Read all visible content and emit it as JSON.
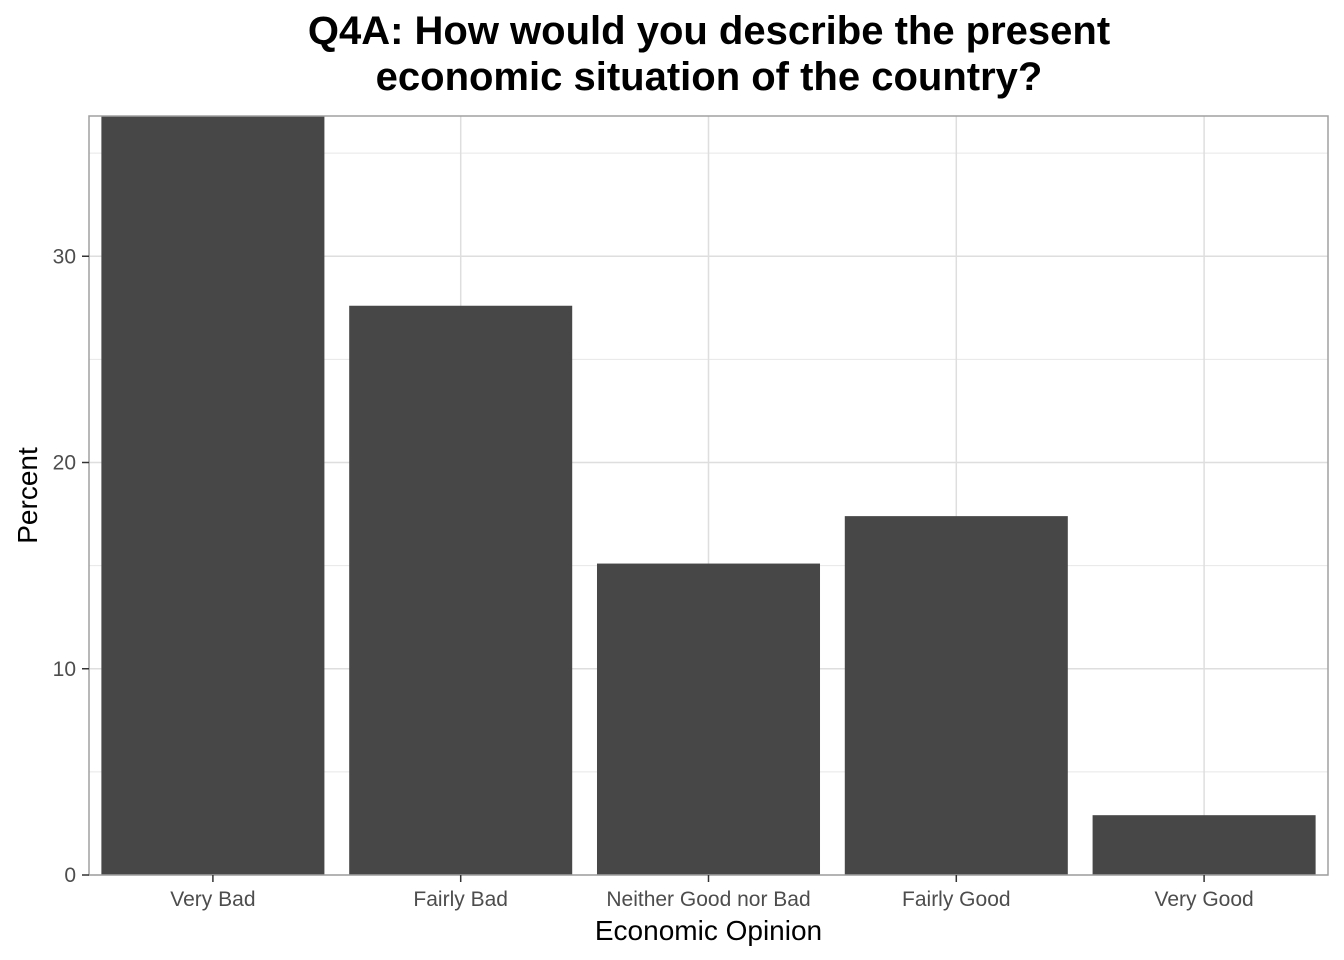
{
  "chart_data": {
    "type": "bar",
    "title_lines": [
      "Q4A: How would you describe the present",
      "economic situation of the country?"
    ],
    "xlabel": "Economic Opinion",
    "ylabel": "Percent",
    "categories": [
      "Very Bad",
      "Fairly Bad",
      "Neither Good nor Bad",
      "Fairly Good",
      "Very Good"
    ],
    "values": [
      37.0,
      27.6,
      15.1,
      17.4,
      2.9
    ],
    "ylim": [
      0,
      36.8
    ],
    "yticks": [
      0,
      10,
      20,
      30
    ],
    "ytick_labels": [
      "0",
      "10",
      "20",
      "30"
    ],
    "grid": true,
    "bar_color": "#474747",
    "grid_color": "#dedede",
    "border_color": "#a0a0a0"
  }
}
